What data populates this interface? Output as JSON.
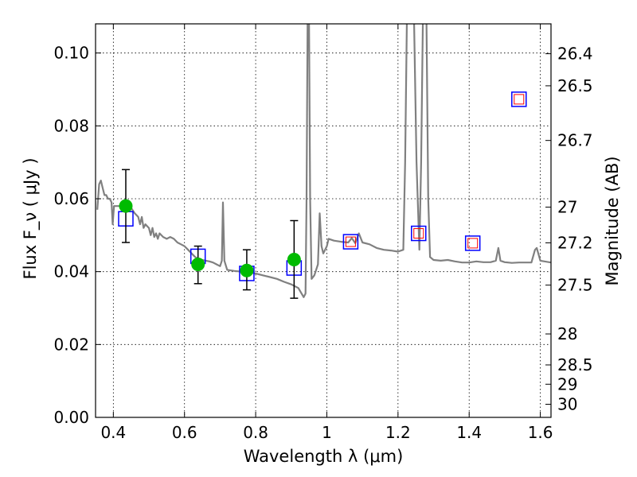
{
  "chart_data": {
    "type": "scatter",
    "title": "",
    "xlabel": "Wavelength  λ (μm)",
    "ylabel": "Flux  F_ν  ( μJy )",
    "ylabel_right": "Magnitude (AB)",
    "xlim": [
      0.35,
      1.63
    ],
    "ylim": [
      0.0,
      0.108
    ],
    "grid": true,
    "xticks": [
      0.4,
      0.6,
      0.8,
      1.0,
      1.2,
      1.4,
      1.6
    ],
    "xtick_labels": [
      "0.4",
      "0.6",
      "0.8",
      "1",
      "1.2",
      "1.4",
      "1.6"
    ],
    "yticks": [
      0.0,
      0.02,
      0.04,
      0.06,
      0.08,
      0.1
    ],
    "ytick_labels": [
      "0.00",
      "0.02",
      "0.04",
      "0.06",
      "0.08",
      "0.10"
    ],
    "right_ticks": [
      {
        "label": "26.4",
        "flux": 0.0998
      },
      {
        "label": "26.5",
        "flux": 0.091
      },
      {
        "label": "26.7",
        "flux": 0.076
      },
      {
        "label": "27",
        "flux": 0.0577
      },
      {
        "label": "27.2",
        "flux": 0.0479
      },
      {
        "label": "27.5",
        "flux": 0.0363
      },
      {
        "label": "28",
        "flux": 0.0229
      },
      {
        "label": "28.5",
        "flux": 0.0144
      },
      {
        "label": "29",
        "flux": 0.0091
      },
      {
        "label": "30",
        "flux": 0.0036
      }
    ],
    "series": [
      {
        "kind": "line",
        "color": "#808080",
        "points": [
          [
            0.355,
            0.057
          ],
          [
            0.36,
            0.064
          ],
          [
            0.365,
            0.065
          ],
          [
            0.37,
            0.063
          ],
          [
            0.375,
            0.061
          ],
          [
            0.38,
            0.061
          ],
          [
            0.385,
            0.06
          ],
          [
            0.39,
            0.06
          ],
          [
            0.395,
            0.059
          ],
          [
            0.398,
            0.053
          ],
          [
            0.402,
            0.058
          ],
          [
            0.41,
            0.058
          ],
          [
            0.42,
            0.058
          ],
          [
            0.43,
            0.057
          ],
          [
            0.44,
            0.058
          ],
          [
            0.45,
            0.0575
          ],
          [
            0.46,
            0.056
          ],
          [
            0.47,
            0.055
          ],
          [
            0.475,
            0.053
          ],
          [
            0.48,
            0.055
          ],
          [
            0.485,
            0.052
          ],
          [
            0.49,
            0.053
          ],
          [
            0.5,
            0.052
          ],
          [
            0.505,
            0.05
          ],
          [
            0.51,
            0.052
          ],
          [
            0.515,
            0.0495
          ],
          [
            0.52,
            0.0505
          ],
          [
            0.525,
            0.049
          ],
          [
            0.53,
            0.0505
          ],
          [
            0.54,
            0.0495
          ],
          [
            0.55,
            0.049
          ],
          [
            0.56,
            0.0495
          ],
          [
            0.57,
            0.049
          ],
          [
            0.58,
            0.048
          ],
          [
            0.59,
            0.0475
          ],
          [
            0.6,
            0.047
          ],
          [
            0.61,
            0.046
          ],
          [
            0.62,
            0.045
          ],
          [
            0.63,
            0.044
          ],
          [
            0.64,
            0.0435
          ],
          [
            0.65,
            0.0432
          ],
          [
            0.66,
            0.043
          ],
          [
            0.67,
            0.0428
          ],
          [
            0.68,
            0.0425
          ],
          [
            0.69,
            0.042
          ],
          [
            0.7,
            0.0415
          ],
          [
            0.705,
            0.043
          ],
          [
            0.708,
            0.059
          ],
          [
            0.712,
            0.043
          ],
          [
            0.72,
            0.0405
          ],
          [
            0.74,
            0.0402
          ],
          [
            0.76,
            0.04
          ],
          [
            0.78,
            0.0398
          ],
          [
            0.8,
            0.0395
          ],
          [
            0.82,
            0.039
          ],
          [
            0.84,
            0.0385
          ],
          [
            0.86,
            0.038
          ],
          [
            0.88,
            0.0372
          ],
          [
            0.9,
            0.0365
          ],
          [
            0.92,
            0.0355
          ],
          [
            0.935,
            0.033
          ],
          [
            0.94,
            0.034
          ],
          [
            0.943,
            0.06
          ],
          [
            0.946,
            0.109
          ],
          [
            0.95,
            0.109
          ],
          [
            0.953,
            0.06
          ],
          [
            0.957,
            0.038
          ],
          [
            0.965,
            0.039
          ],
          [
            0.975,
            0.042
          ],
          [
            0.98,
            0.056
          ],
          [
            0.985,
            0.047
          ],
          [
            0.99,
            0.045
          ],
          [
            1.0,
            0.047
          ],
          [
            1.005,
            0.049
          ],
          [
            1.02,
            0.0485
          ],
          [
            1.04,
            0.0482
          ],
          [
            1.06,
            0.048
          ],
          [
            1.07,
            0.0492
          ],
          [
            1.08,
            0.0478
          ],
          [
            1.09,
            0.0505
          ],
          [
            1.1,
            0.048
          ],
          [
            1.12,
            0.0475
          ],
          [
            1.14,
            0.0465
          ],
          [
            1.16,
            0.046
          ],
          [
            1.18,
            0.0458
          ],
          [
            1.2,
            0.0455
          ],
          [
            1.215,
            0.046
          ],
          [
            1.22,
            0.07
          ],
          [
            1.225,
            0.109
          ],
          [
            1.245,
            0.109
          ],
          [
            1.252,
            0.07
          ],
          [
            1.26,
            0.046
          ],
          [
            1.265,
            0.07
          ],
          [
            1.27,
            0.109
          ],
          [
            1.28,
            0.109
          ],
          [
            1.285,
            0.06
          ],
          [
            1.29,
            0.044
          ],
          [
            1.3,
            0.0432
          ],
          [
            1.32,
            0.043
          ],
          [
            1.34,
            0.0432
          ],
          [
            1.36,
            0.0428
          ],
          [
            1.38,
            0.0425
          ],
          [
            1.4,
            0.0425
          ],
          [
            1.42,
            0.0428
          ],
          [
            1.44,
            0.0426
          ],
          [
            1.46,
            0.0426
          ],
          [
            1.475,
            0.043
          ],
          [
            1.482,
            0.0465
          ],
          [
            1.488,
            0.043
          ],
          [
            1.5,
            0.0426
          ],
          [
            1.52,
            0.0424
          ],
          [
            1.54,
            0.0425
          ],
          [
            1.56,
            0.0425
          ],
          [
            1.575,
            0.0425
          ],
          [
            1.585,
            0.046
          ],
          [
            1.59,
            0.0465
          ],
          [
            1.6,
            0.043
          ],
          [
            1.63,
            0.0425
          ]
        ]
      },
      {
        "kind": "square",
        "color": "#0000ff",
        "points": [
          [
            0.435,
            0.0545
          ],
          [
            0.638,
            0.0442
          ],
          [
            0.775,
            0.0395
          ],
          [
            0.908,
            0.041
          ],
          [
            1.067,
            0.0482
          ],
          [
            1.258,
            0.0505
          ],
          [
            1.41,
            0.0478
          ],
          [
            1.54,
            0.0873
          ]
        ]
      },
      {
        "kind": "small-square",
        "color": "#ff0000",
        "points": [
          [
            1.067,
            0.0482
          ],
          [
            1.258,
            0.0505
          ],
          [
            1.41,
            0.0478
          ],
          [
            1.54,
            0.0873
          ]
        ]
      },
      {
        "kind": "point",
        "color": "#00bb00",
        "points": [
          [
            0.435,
            0.058
          ],
          [
            0.638,
            0.042
          ],
          [
            0.775,
            0.0403
          ],
          [
            0.908,
            0.0433
          ]
        ],
        "errors": [
          [
            0.048,
            0.068
          ],
          [
            0.0367,
            0.047
          ],
          [
            0.035,
            0.046
          ],
          [
            0.0327,
            0.054
          ]
        ]
      }
    ]
  }
}
